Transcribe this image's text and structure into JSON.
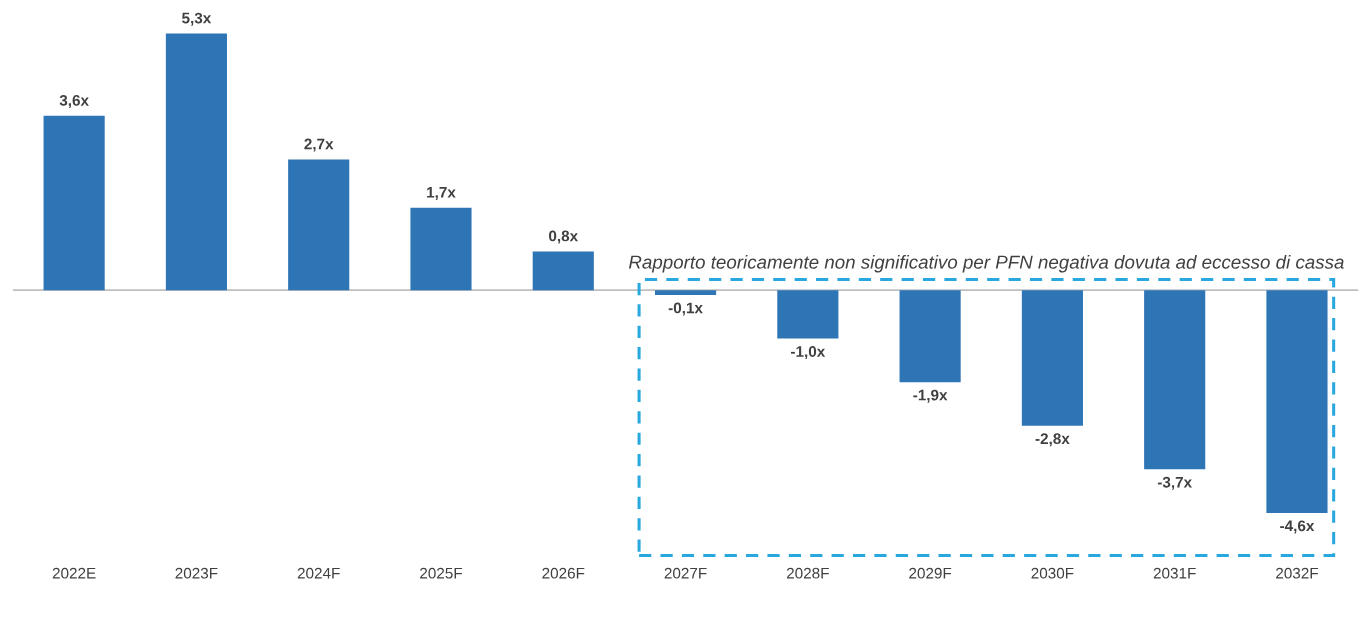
{
  "chart_data": {
    "type": "bar",
    "categories": [
      "2022E",
      "2023F",
      "2024F",
      "2025F",
      "2026F",
      "2027F",
      "2028F",
      "2029F",
      "2030F",
      "2031F",
      "2032F"
    ],
    "values": [
      3.6,
      5.3,
      2.7,
      1.7,
      0.8,
      -0.1,
      -1.0,
      -1.9,
      -2.8,
      -3.7,
      -4.6
    ],
    "value_labels": [
      "3,6x",
      "5,3x",
      "2,7x",
      "1,7x",
      "0,8x",
      "-0,1x",
      "-1,0x",
      "-1,9x",
      "-2,8x",
      "-3,7x",
      "-4,6x"
    ],
    "color": "#2e75b6",
    "annotations": [
      "Rapporto teoricamente non significativo per PFN negativa dovuta ad eccesso di cassa"
    ],
    "grid": false,
    "legend": false
  }
}
